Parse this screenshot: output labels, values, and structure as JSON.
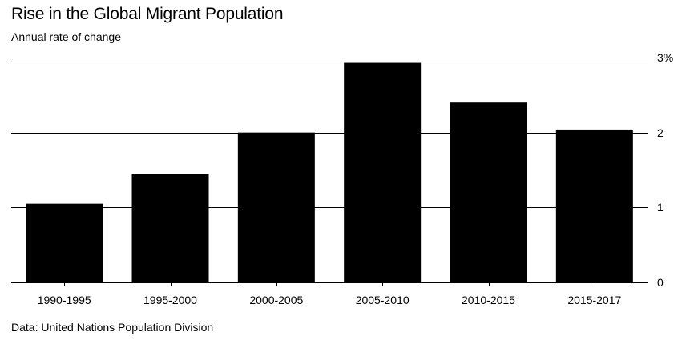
{
  "chart_data": {
    "type": "bar",
    "title": "Rise in the Global Migrant Population",
    "subtitle": "Annual rate of change",
    "source": "Data: United Nations Population Division",
    "categories": [
      "1990-1995",
      "1995-2000",
      "2000-2005",
      "2005-2010",
      "2010-2015",
      "2015-2017"
    ],
    "values": [
      1.05,
      1.45,
      2.0,
      2.93,
      2.4,
      2.04
    ],
    "xlabel": "",
    "ylabel": "",
    "ylim": [
      0,
      3
    ],
    "yticks": [
      0,
      1,
      2,
      3
    ],
    "ytick_labels": [
      "0",
      "1",
      "2",
      "3%"
    ],
    "grid": true,
    "bar_color": "#000000",
    "axis_side": "right"
  }
}
